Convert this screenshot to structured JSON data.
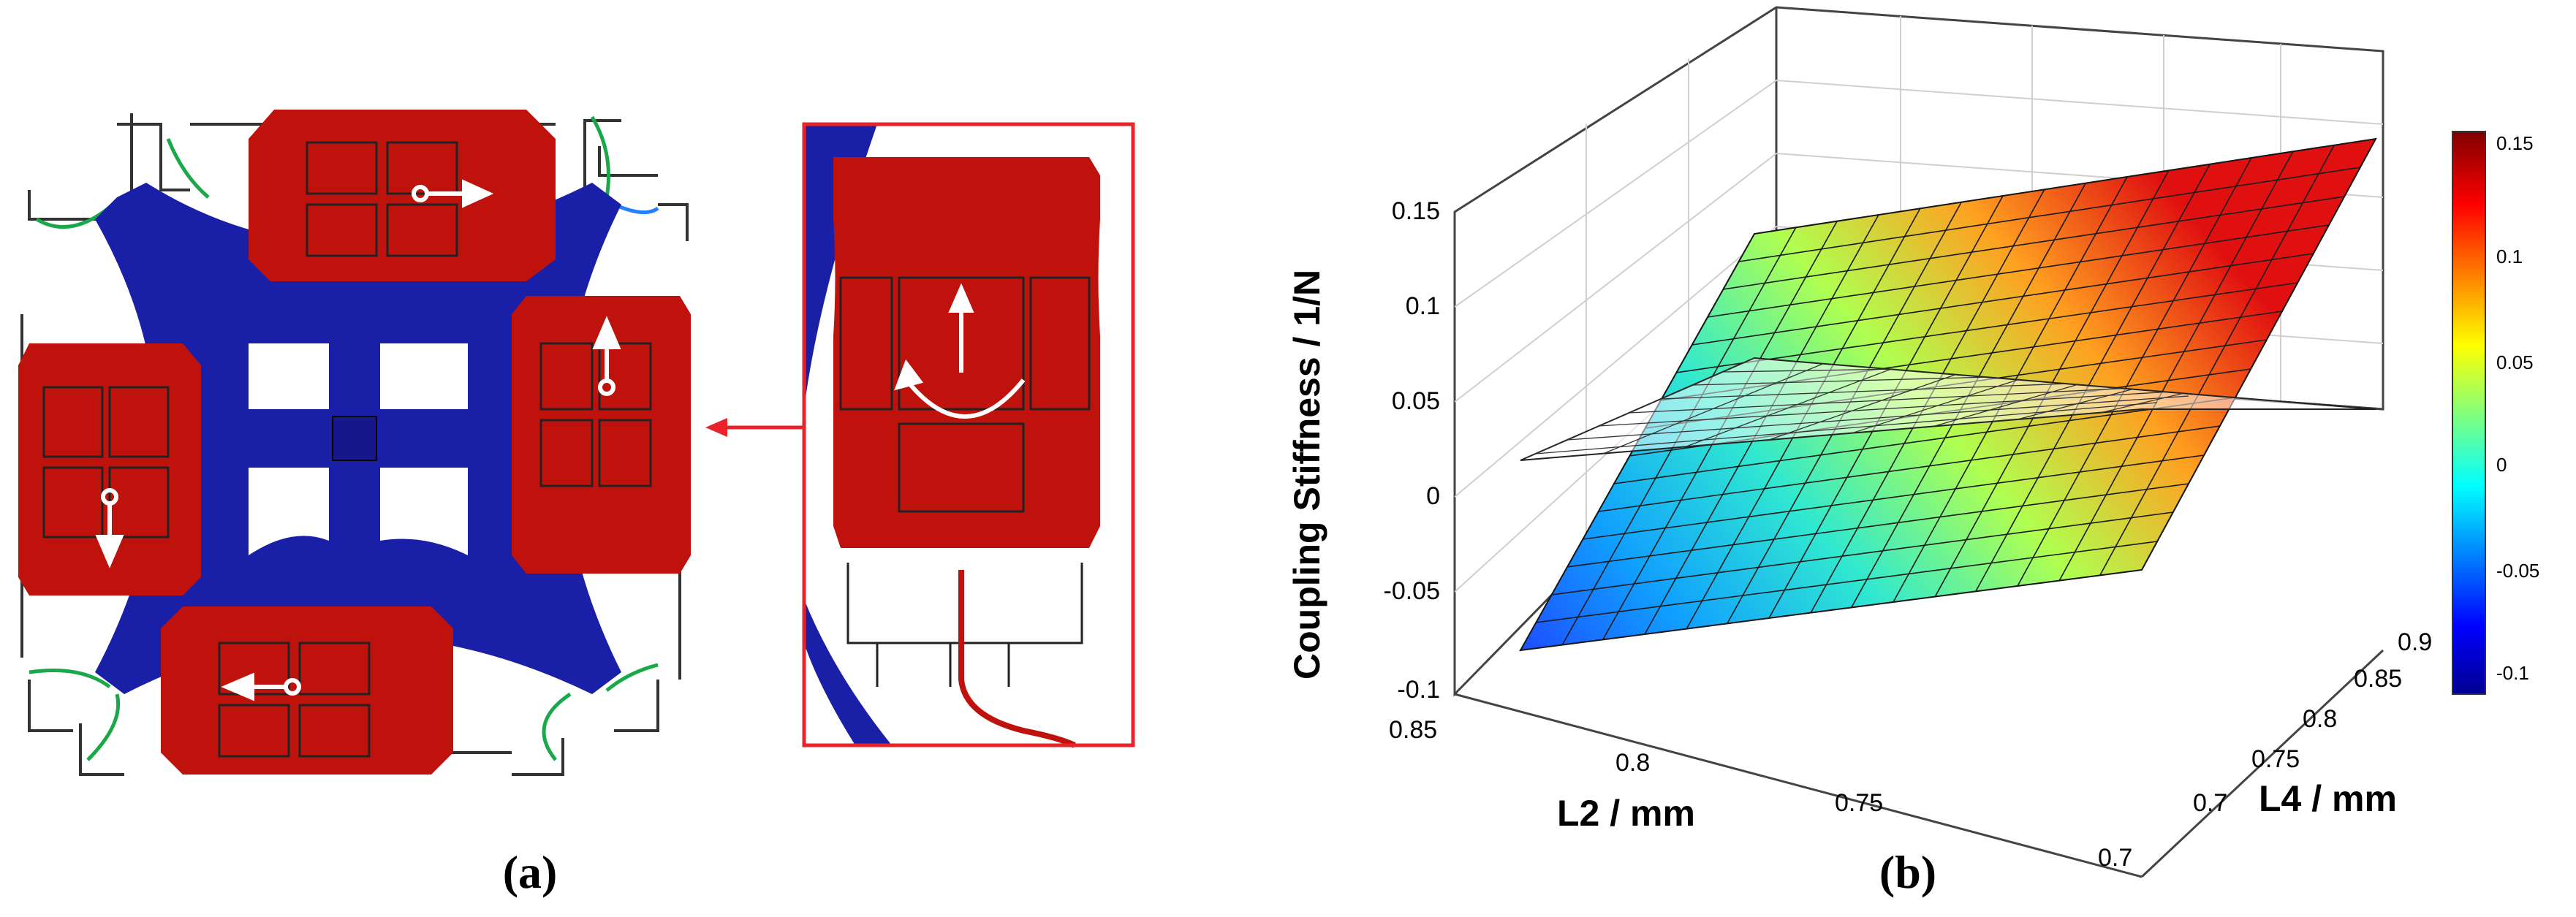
{
  "captions": {
    "a": "(a)",
    "b": "(b)"
  },
  "chart_data": {
    "type": "surface",
    "zlabel": "Coupling Stiffness / 1/N",
    "xlabel": "L2 / mm",
    "ylabel": "L4 / mm",
    "x_ticks": [
      "0.85",
      "0.8",
      "0.75",
      "0.7"
    ],
    "y_ticks": [
      "0.7",
      "0.75",
      "0.8",
      "0.85",
      "0.9"
    ],
    "z_ticks": [
      "0.15",
      "0.1",
      "0.05",
      "0",
      "-0.05",
      "-0.1"
    ],
    "xlim": [
      0.7,
      0.85
    ],
    "ylim": [
      0.7,
      0.9
    ],
    "zlim": [
      -0.1,
      0.15
    ],
    "colorbar_ticks": [
      "0.15",
      "0.1",
      "0.05",
      "0",
      "-0.05",
      "-0.1"
    ],
    "colormap": "jet",
    "surface_corners": [
      {
        "L2": 0.85,
        "L4": 0.7,
        "z": -0.092
      },
      {
        "L2": 0.7,
        "L4": 0.7,
        "z": -0.04
      },
      {
        "L2": 0.7,
        "L4": 0.9,
        "z": 0.18
      },
      {
        "L2": 0.85,
        "L4": 0.9,
        "z": 0.06
      }
    ],
    "reference_plane_z": 0,
    "grid": true
  },
  "colors": {
    "frame_blue": "#1a1fa8",
    "mass_red": "#c0120c",
    "arrow_red": "#e8232a"
  }
}
